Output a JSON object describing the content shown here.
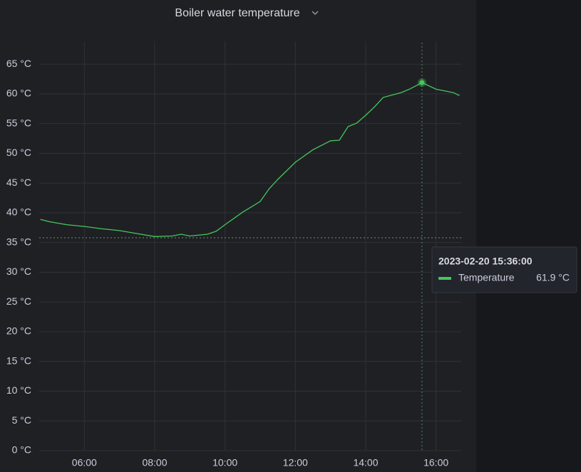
{
  "chart_data": {
    "type": "line",
    "title": "Boiler water temperature",
    "x": [
      "04:45",
      "05:00",
      "05:30",
      "06:00",
      "06:30",
      "07:00",
      "07:30",
      "08:00",
      "08:30",
      "08:45",
      "09:00",
      "09:30",
      "09:45",
      "10:00",
      "10:30",
      "11:00",
      "11:15",
      "11:30",
      "12:00",
      "12:30",
      "13:00",
      "13:15",
      "13:30",
      "13:45",
      "14:00",
      "14:15",
      "14:30",
      "15:00",
      "15:15",
      "15:36",
      "16:00",
      "16:15",
      "16:30",
      "16:40"
    ],
    "series": [
      {
        "name": "Temperature",
        "color": "#45c75c",
        "values": [
          38.9,
          38.5,
          38.0,
          37.7,
          37.3,
          37.0,
          36.5,
          36.0,
          36.1,
          36.4,
          36.1,
          36.4,
          36.9,
          38.0,
          40.1,
          41.9,
          44.0,
          45.6,
          48.5,
          50.6,
          52.1,
          52.2,
          54.5,
          55.1,
          56.4,
          57.8,
          59.4,
          60.2,
          60.8,
          61.9,
          60.8,
          60.5,
          60.2,
          59.7
        ]
      }
    ],
    "xlim": [
      "04:43",
      "16:43"
    ],
    "xticks": [
      "06:00",
      "08:00",
      "10:00",
      "12:00",
      "14:00",
      "16:00"
    ],
    "ylim": [
      0,
      68.6
    ],
    "yticks": [
      {
        "value": 0,
        "label": "0 °C"
      },
      {
        "value": 5,
        "label": "5 °C"
      },
      {
        "value": 10,
        "label": "10 °C"
      },
      {
        "value": 15,
        "label": "15 °C"
      },
      {
        "value": 20,
        "label": "20 °C"
      },
      {
        "value": 25,
        "label": "25 °C"
      },
      {
        "value": 30,
        "label": "30 °C"
      },
      {
        "value": 35,
        "label": "35 °C"
      },
      {
        "value": 40,
        "label": "40 °C"
      },
      {
        "value": 45,
        "label": "45 °C"
      },
      {
        "value": 50,
        "label": "50 °C"
      },
      {
        "value": 55,
        "label": "55 °C"
      },
      {
        "value": 60,
        "label": "60 °C"
      },
      {
        "value": 65,
        "label": "65 °C"
      }
    ],
    "grid": true,
    "hover": {
      "x": "15:36",
      "y": 61.9,
      "cursor_y": 35.8,
      "label": "2023-02-20 15:36:00",
      "value_label": "61.9 °C"
    }
  }
}
